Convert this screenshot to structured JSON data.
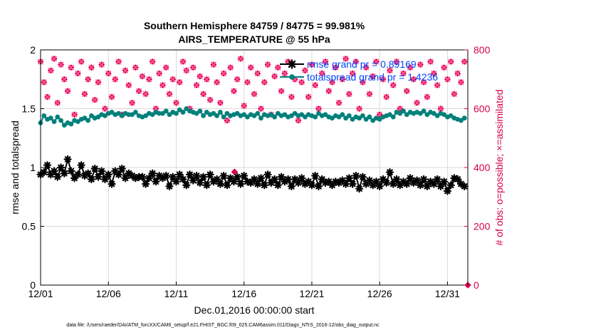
{
  "chart_data": {
    "type": "line",
    "title": "Southern Hemisphere 84759 / 84775 = 99.981%",
    "subtitle": "AIRS_TEMPERATURE @ 55 hPa",
    "xlabel": "Dec.01,2016 00:00:00 start",
    "ylabel": "rmse and totalspread",
    "ylabel_right": "# of obs: o=possible; ×=assimilated",
    "footnote": "data file: /Users/raeder/DAI/ATM_forcXX/CAM6_setup/f.e21.FHIST_BGC.f09_025.CAM6assim.011/Diags_NTrS_2016-12/obs_diag_output.nc",
    "x_start_day": 1,
    "x_end_day": 32.5,
    "xticks": [
      {
        "day": 1,
        "label": "12/01"
      },
      {
        "day": 6,
        "label": "12/06"
      },
      {
        "day": 11,
        "label": "12/11"
      },
      {
        "day": 16,
        "label": "12/16"
      },
      {
        "day": 21,
        "label": "12/21"
      },
      {
        "day": 26,
        "label": "12/26"
      },
      {
        "day": 31,
        "label": "12/31"
      }
    ],
    "ylim": [
      0,
      2
    ],
    "yticks": [
      0,
      0.5,
      1,
      1.5,
      2
    ],
    "ylim_right": [
      0,
      800
    ],
    "yticks_right": [
      0,
      200,
      400,
      600,
      800
    ],
    "grid": true,
    "legend_position": "top-right",
    "colors": {
      "rmse": "#000000",
      "spread": "#00807a",
      "obs": "#d6004f",
      "legend_text": "#0046ff"
    },
    "legend": [
      "rmse grand pr = 0.89169",
      "totalspread grand pr = 1.4236"
    ],
    "series": [
      {
        "name": "rmse",
        "axis": "left",
        "marker": "*",
        "values": [
          0.94,
          0.96,
          1.02,
          0.94,
          0.97,
          0.92,
          1.0,
          0.95,
          1.07,
          0.97,
          0.91,
          0.94,
          1.02,
          0.93,
          0.95,
          0.9,
          0.99,
          0.92,
          0.97,
          0.9,
          0.94,
          0.86,
          0.97,
          0.94,
          0.99,
          0.91,
          0.95,
          0.93,
          0.91,
          0.92,
          0.92,
          0.86,
          0.91,
          0.95,
          0.88,
          0.93,
          0.91,
          0.93,
          0.84,
          0.92,
          0.88,
          0.94,
          0.9,
          0.85,
          0.94,
          0.89,
          0.93,
          0.87,
          0.92,
          0.85,
          0.94,
          0.88,
          0.9,
          0.86,
          0.93,
          0.85,
          0.91,
          0.88,
          0.92,
          0.86,
          0.93,
          0.88,
          0.87,
          0.9,
          0.86,
          0.91,
          0.85,
          0.94,
          0.87,
          0.9,
          0.85,
          0.92,
          0.88,
          0.9,
          0.84,
          0.9,
          0.87,
          0.91,
          0.86,
          0.88,
          0.85,
          0.93,
          0.84,
          0.9,
          0.87,
          0.88,
          0.85,
          0.88,
          0.87,
          0.89,
          0.86,
          0.91,
          0.86,
          0.93,
          0.82,
          0.92,
          0.86,
          0.89,
          0.85,
          0.88,
          0.84,
          0.9,
          0.87,
          0.96,
          0.86,
          0.9,
          0.85,
          0.88,
          0.86,
          0.91,
          0.87,
          0.89,
          0.85,
          0.9,
          0.84,
          0.88,
          0.86,
          0.9,
          0.84,
          0.88,
          0.8,
          0.85,
          0.91,
          0.9,
          0.86,
          0.84
        ]
      },
      {
        "name": "totalspread",
        "axis": "left",
        "marker": "o",
        "values": [
          1.38,
          1.44,
          1.41,
          1.42,
          1.39,
          1.43,
          1.4,
          1.36,
          1.38,
          1.37,
          1.4,
          1.39,
          1.41,
          1.42,
          1.4,
          1.44,
          1.42,
          1.43,
          1.45,
          1.44,
          1.46,
          1.47,
          1.45,
          1.46,
          1.44,
          1.46,
          1.45,
          1.45,
          1.47,
          1.44,
          1.43,
          1.44,
          1.46,
          1.45,
          1.47,
          1.46,
          1.46,
          1.48,
          1.45,
          1.47,
          1.46,
          1.49,
          1.47,
          1.5,
          1.48,
          1.47,
          1.46,
          1.48,
          1.44,
          1.47,
          1.45,
          1.46,
          1.44,
          1.47,
          1.43,
          1.46,
          1.44,
          1.45,
          1.46,
          1.44,
          1.45,
          1.43,
          1.45,
          1.44,
          1.46,
          1.42,
          1.45,
          1.44,
          1.45,
          1.43,
          1.46,
          1.44,
          1.45,
          1.43,
          1.44,
          1.46,
          1.44,
          1.45,
          1.43,
          1.45,
          1.44,
          1.43,
          1.46,
          1.44,
          1.45,
          1.43,
          1.42,
          1.44,
          1.43,
          1.45,
          1.42,
          1.44,
          1.41,
          1.43,
          1.42,
          1.44,
          1.41,
          1.43,
          1.4,
          1.42,
          1.41,
          1.43,
          1.44,
          1.45,
          1.43,
          1.47,
          1.46,
          1.48,
          1.45,
          1.47,
          1.46,
          1.47,
          1.46,
          1.48,
          1.45,
          1.47,
          1.46,
          1.44,
          1.46,
          1.45,
          1.43,
          1.44,
          1.42,
          1.41,
          1.4,
          1.42
        ]
      },
      {
        "name": "# obs possible",
        "axis": "right",
        "marker": "o",
        "values": [
          760,
          690,
          640,
          730,
          770,
          620,
          750,
          700,
          660,
          740,
          580,
          720,
          760,
          650,
          700,
          740,
          630,
          690,
          750,
          600,
          720,
          640,
          700,
          760,
          580,
          730,
          680,
          620,
          740,
          660,
          710,
          650,
          700,
          760,
          600,
          720,
          680,
          740,
          650,
          700,
          620,
          690,
          760,
          730,
          600,
          740,
          680,
          710,
          650,
          700,
          630,
          750,
          690,
          620,
          720,
          560,
          740,
          660,
          700,
          770,
          610,
          690,
          740,
          650,
          720,
          600,
          690,
          750,
          580,
          710,
          740,
          660,
          720,
          760,
          640,
          700,
          560,
          690,
          730,
          640,
          750,
          680,
          600,
          720,
          760,
          660,
          690,
          740,
          620,
          700,
          770,
          650,
          720,
          760,
          600,
          690,
          740,
          650,
          710,
          760,
          580,
          700,
          640,
          730,
          680,
          760,
          600,
          720,
          660,
          740,
          700,
          620,
          750,
          690,
          640,
          760,
          720,
          680,
          600,
          740,
          700,
          760,
          650,
          720,
          690,
          760
        ]
      },
      {
        "name": "# obs assimilated",
        "axis": "right",
        "marker": "x",
        "values": [
          760,
          690,
          640,
          730,
          770,
          620,
          750,
          700,
          660,
          740,
          580,
          720,
          760,
          650,
          700,
          740,
          630,
          690,
          750,
          600,
          720,
          640,
          700,
          760,
          580,
          730,
          680,
          620,
          740,
          660,
          710,
          650,
          700,
          760,
          600,
          720,
          680,
          740,
          650,
          700,
          620,
          690,
          760,
          730,
          600,
          740,
          680,
          710,
          650,
          700,
          630,
          750,
          690,
          620,
          720,
          560,
          740,
          660,
          700,
          770,
          610,
          690,
          740,
          650,
          720,
          600,
          690,
          750,
          580,
          710,
          740,
          660,
          720,
          760,
          640,
          700,
          560,
          690,
          730,
          640,
          750,
          680,
          600,
          720,
          760,
          660,
          690,
          740,
          620,
          700,
          770,
          650,
          720,
          760,
          600,
          690,
          740,
          650,
          710,
          760,
          580,
          700,
          640,
          730,
          680,
          760,
          600,
          720,
          660,
          740,
          700,
          620,
          750,
          690,
          640,
          760,
          720,
          680,
          600,
          740,
          700,
          760,
          650,
          720,
          690,
          760
        ]
      }
    ],
    "extra_right_points": [
      {
        "x_day": 15.3,
        "value": 385
      },
      {
        "x_day": 32.5,
        "value": 0
      }
    ]
  }
}
